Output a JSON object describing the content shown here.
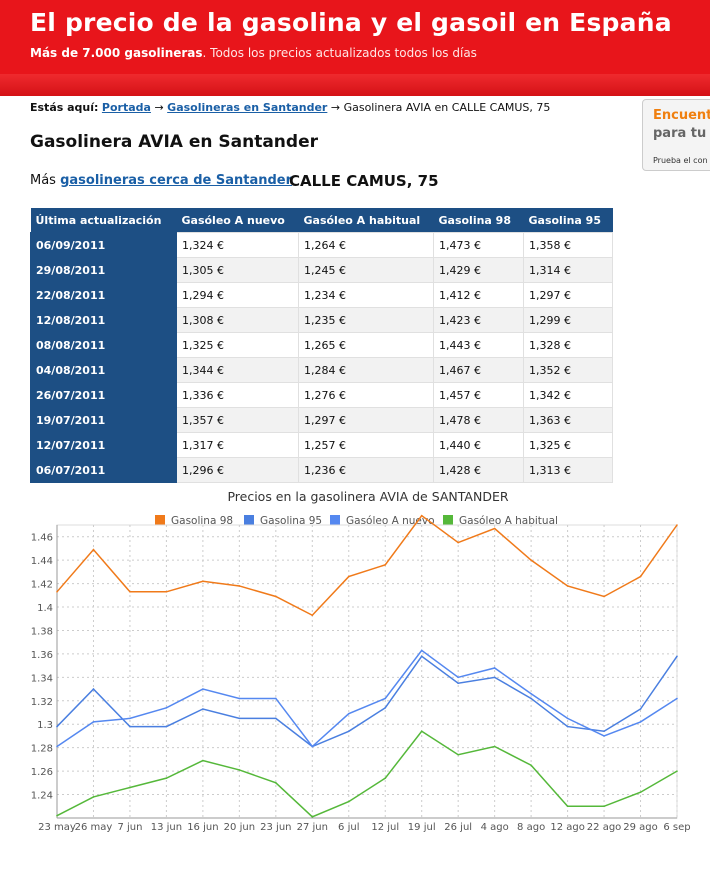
{
  "header": {
    "title": "El precio de la gasolina y el gasoil en España",
    "tagline_bold": "Más de 7.000 gasolineras",
    "tagline_rest": ". Todos los precios actualizados todos los días"
  },
  "breadcrumb": {
    "label": "Estás aquí:",
    "home": "Portada",
    "sep1": " → ",
    "city": "Gasolineras en Santander",
    "sep2": " → ",
    "current": "Gasolinera AVIA en CALLE CAMUS, 75"
  },
  "ad": {
    "line1": "Encuent",
    "line2": "para tu c",
    "line3": "Prueba el con"
  },
  "page_title": "Gasolinera AVIA en Santander",
  "more": {
    "prefix": "Más ",
    "link": "gasolineras cerca de Santander"
  },
  "address": "CALLE CAMUS, 75",
  "table": {
    "headers": [
      "Última actualización",
      "Gasóleo A nuevo",
      "Gasóleo A habitual",
      "Gasolina 98",
      "Gasolina 95"
    ],
    "rows": [
      [
        "06/09/2011",
        "1,324 €",
        "1,264 €",
        "1,473 €",
        "1,358 €"
      ],
      [
        "29/08/2011",
        "1,305 €",
        "1,245 €",
        "1,429 €",
        "1,314 €"
      ],
      [
        "22/08/2011",
        "1,294 €",
        "1,234 €",
        "1,412 €",
        "1,297 €"
      ],
      [
        "12/08/2011",
        "1,308 €",
        "1,235 €",
        "1,423 €",
        "1,299 €"
      ],
      [
        "08/08/2011",
        "1,325 €",
        "1,265 €",
        "1,443 €",
        "1,328 €"
      ],
      [
        "04/08/2011",
        "1,344 €",
        "1,284 €",
        "1,467 €",
        "1,352 €"
      ],
      [
        "26/07/2011",
        "1,336 €",
        "1,276 €",
        "1,457 €",
        "1,342 €"
      ],
      [
        "19/07/2011",
        "1,357 €",
        "1,297 €",
        "1,478 €",
        "1,363 €"
      ],
      [
        "12/07/2011",
        "1,317 €",
        "1,257 €",
        "1,440 €",
        "1,325 €"
      ],
      [
        "06/07/2011",
        "1,296 €",
        "1,236 €",
        "1,428 €",
        "1,313 €"
      ]
    ]
  },
  "chart_data": {
    "type": "line",
    "title": "Precios en la gasolinera AVIA de SANTANDER",
    "ylim": [
      1.22,
      1.47
    ],
    "yticks": [
      1.24,
      1.26,
      1.28,
      1.3,
      1.32,
      1.34,
      1.36,
      1.38,
      1.4,
      1.42,
      1.44,
      1.46
    ],
    "xticks": [
      "23 may",
      "26 may",
      "7 jun",
      "13 jun",
      "16 jun",
      "20 jun",
      "23 jun",
      "27 jun",
      "6 jul",
      "12 jul",
      "19 jul",
      "26 jul",
      "4 ago",
      "8 ago",
      "12 ago",
      "22 ago",
      "29 ago",
      "6 sep"
    ],
    "grid": true,
    "legend": "top",
    "series": [
      {
        "name": "Gasolina 98",
        "color": "#f07a1a",
        "values": [
          1.413,
          1.449,
          1.413,
          1.413,
          1.422,
          1.418,
          1.409,
          1.393,
          1.426,
          1.436,
          1.478,
          1.455,
          1.467,
          1.44,
          1.418,
          1.409,
          1.426,
          1.47
        ]
      },
      {
        "name": "Gasolina 95",
        "color": "#4a7fe0",
        "values": [
          1.298,
          1.33,
          1.298,
          1.298,
          1.313,
          1.305,
          1.305,
          1.281,
          1.294,
          1.314,
          1.358,
          1.335,
          1.34,
          1.322,
          1.298,
          1.294,
          1.313,
          1.358
        ]
      },
      {
        "name": "Gasóleo A nuevo",
        "color": "#5588f0",
        "values": [
          1.281,
          1.302,
          1.305,
          1.314,
          1.33,
          1.322,
          1.322,
          1.281,
          1.309,
          1.322,
          1.363,
          1.34,
          1.348,
          1.326,
          1.305,
          1.29,
          1.302,
          1.322
        ]
      },
      {
        "name": "Gasóleo A habitual",
        "color": "#55b83a",
        "values": [
          1.222,
          1.238,
          1.246,
          1.254,
          1.269,
          1.261,
          1.25,
          1.221,
          1.234,
          1.254,
          1.294,
          1.274,
          1.281,
          1.265,
          1.23,
          1.23,
          1.242,
          1.26
        ]
      }
    ]
  }
}
